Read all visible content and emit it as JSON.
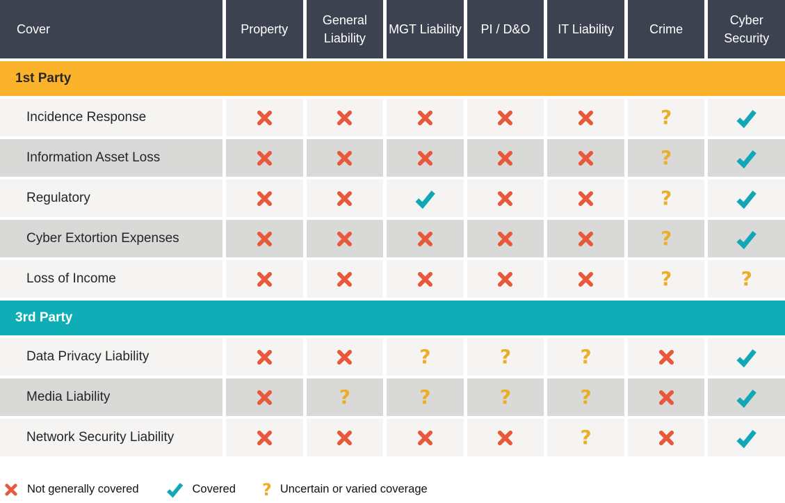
{
  "colors": {
    "header_bg": "#3C424F",
    "header_text": "#FFFFFF",
    "row_light": "#F5F4F2",
    "row_dark": "#D9D9D8",
    "x_icon": "#E8593C",
    "check_icon": "#12A7B7",
    "question_icon": "#EBAE2B",
    "first_party_accent": "#FBB32B",
    "third_party_accent": "#0FADB5"
  },
  "chart_data": {
    "type": "table",
    "columns": [
      "Cover",
      "Property",
      "General Liability",
      "MGT Liability",
      "PI / D&O",
      "IT Liability",
      "Crime",
      "Cyber Security"
    ],
    "sections": [
      {
        "label": "1st Party",
        "accent": "#FBB32B",
        "text_color": "#2B2722",
        "rows": [
          {
            "label": "Incidence Response",
            "cells": [
              "x",
              "x",
              "x",
              "x",
              "x",
              "q",
              "check"
            ]
          },
          {
            "label": "Information Asset Loss",
            "cells": [
              "x",
              "x",
              "x",
              "x",
              "x",
              "q",
              "check"
            ]
          },
          {
            "label": "Regulatory",
            "cells": [
              "x",
              "x",
              "check",
              "x",
              "x",
              "q",
              "check"
            ]
          },
          {
            "label": "Cyber Extortion Expenses",
            "cells": [
              "x",
              "x",
              "x",
              "x",
              "x",
              "q",
              "check"
            ]
          },
          {
            "label": "Loss of Income",
            "cells": [
              "x",
              "x",
              "x",
              "x",
              "x",
              "q",
              "q"
            ]
          }
        ]
      },
      {
        "label": "3rd Party",
        "accent": "#0FADB5",
        "text_color": "#FFFFFF",
        "rows": [
          {
            "label": "Data Privacy Liability",
            "cells": [
              "x",
              "x",
              "q",
              "q",
              "q",
              "x",
              "check"
            ]
          },
          {
            "label": "Media Liability",
            "cells": [
              "x",
              "q",
              "q",
              "q",
              "q",
              "x",
              "check"
            ]
          },
          {
            "label": "Network Security Liability",
            "cells": [
              "x",
              "x",
              "x",
              "x",
              "q",
              "x",
              "check"
            ]
          }
        ]
      }
    ],
    "legend": [
      {
        "symbol": "x",
        "label": "Not generally covered"
      },
      {
        "symbol": "check",
        "label": "Covered"
      },
      {
        "symbol": "q",
        "label": "Uncertain or varied coverage"
      }
    ]
  }
}
